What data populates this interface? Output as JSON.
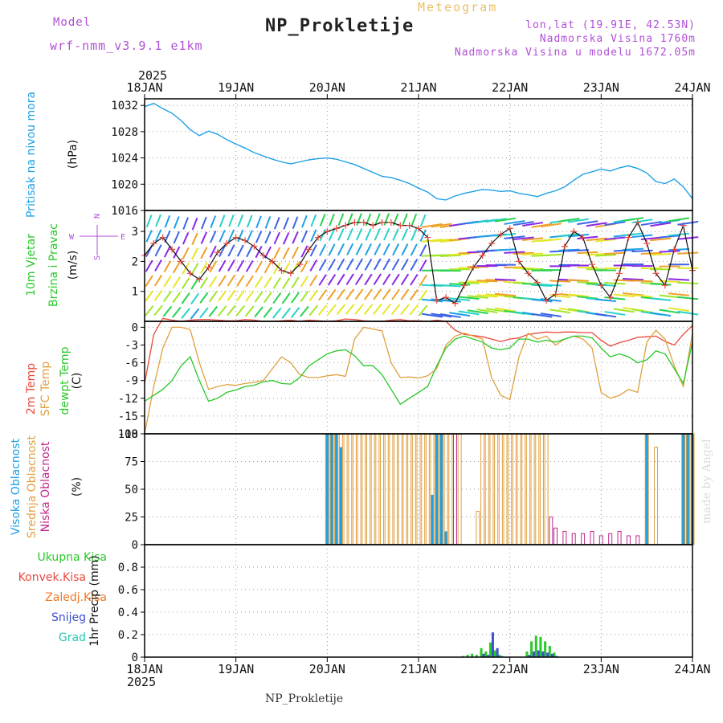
{
  "header": {
    "model_label": "Model",
    "model_value": "wrf-nmm_v3.9.1 e1km",
    "meteogram": "Meteogram",
    "title": "NP_Prokletije",
    "loc1": "lon,lat (19.91E, 42.53N)",
    "loc2": "Nadmorska Visina 1760m",
    "loc3": "Nadmorska Visina u modelu 1672.05m"
  },
  "footer": "NP_Prokletije",
  "made_by": "made by Angel",
  "colors": {
    "pressure": "#1ea0e6",
    "temp2m": "#e8483c",
    "sfc": "#e0a040",
    "dew": "#28c828",
    "purple": "#b14fd6",
    "high_cloud": "#1ea0e6",
    "mid_cloud": "#e0a040",
    "low_cloud": "#c0288c",
    "precip_total": "#28c828",
    "precip_snow": "#3c50d0",
    "precip_grad": "#28c8b4"
  },
  "wind_compass": {
    "n": "N",
    "s": "S",
    "w": "W",
    "e": "E"
  },
  "chart_data": [
    {
      "type": "line",
      "name": "pressure",
      "ylabel_left": "Pritisak na nivou mora",
      "ylabel_unit": "(hPa)",
      "ylim": [
        1016,
        1033
      ],
      "yticks": [
        1016,
        1020,
        1024,
        1028,
        1032
      ],
      "top_axis_year": "2025",
      "x_labels": [
        "18JAN",
        "19JAN",
        "20JAN",
        "21JAN",
        "22JAN",
        "23JAN",
        "24JAN"
      ],
      "x": [
        0,
        0.1,
        0.2,
        0.3,
        0.4,
        0.5,
        0.6,
        0.7,
        0.8,
        0.9,
        1.0,
        1.1,
        1.2,
        1.3,
        1.4,
        1.5,
        1.6,
        1.7,
        1.8,
        1.9,
        2.0,
        2.1,
        2.2,
        2.3,
        2.4,
        2.5,
        2.6,
        2.7,
        2.8,
        2.9,
        3.0,
        3.1,
        3.2,
        3.3,
        3.4,
        3.5,
        3.6,
        3.7,
        3.8,
        3.9,
        4.0,
        4.1,
        4.2,
        4.3,
        4.4,
        4.5,
        4.6,
        4.7,
        4.8,
        4.9,
        5.0,
        5.1,
        5.2,
        5.3,
        5.4,
        5.5,
        5.6,
        5.7,
        5.8,
        5.9,
        6.0
      ],
      "values": [
        1031.8,
        1032.3,
        1031.5,
        1030.8,
        1029.7,
        1028.3,
        1027.4,
        1028.1,
        1027.6,
        1026.8,
        1026.1,
        1025.5,
        1024.8,
        1024.3,
        1023.8,
        1023.4,
        1023.1,
        1023.4,
        1023.7,
        1023.9,
        1024.0,
        1023.8,
        1023.4,
        1023.0,
        1022.4,
        1021.8,
        1021.2,
        1021.0,
        1020.6,
        1020.1,
        1019.4,
        1018.8,
        1017.8,
        1017.6,
        1018.2,
        1018.6,
        1018.9,
        1019.2,
        1019.1,
        1018.9,
        1019.0,
        1018.6,
        1018.4,
        1018.1,
        1018.6,
        1019.0,
        1019.6,
        1020.6,
        1021.5,
        1021.9,
        1022.3,
        1022.0,
        1022.5,
        1022.8,
        1022.4,
        1021.7,
        1020.4,
        1020.1,
        1020.8,
        1019.6,
        1017.8
      ]
    },
    {
      "type": "line",
      "name": "wind",
      "ylabel_left_1": "10m Vjetar",
      "ylabel_left_2": "Brzina i Pravac",
      "ylabel_unit": "(m/s)",
      "ylim": [
        0,
        3.7
      ],
      "yticks": [
        1,
        2,
        3
      ],
      "x": [
        0,
        0.1,
        0.2,
        0.3,
        0.4,
        0.5,
        0.6,
        0.7,
        0.8,
        0.9,
        1.0,
        1.1,
        1.2,
        1.3,
        1.4,
        1.5,
        1.6,
        1.7,
        1.8,
        1.9,
        2.0,
        2.1,
        2.2,
        2.3,
        2.4,
        2.5,
        2.6,
        2.7,
        2.8,
        2.9,
        3.0,
        3.1,
        3.2,
        3.3,
        3.4,
        3.5,
        3.6,
        3.7,
        3.8,
        3.9,
        4.0,
        4.1,
        4.2,
        4.3,
        4.4,
        4.5,
        4.6,
        4.7,
        4.8,
        4.9,
        5.0,
        5.1,
        5.2,
        5.3,
        5.4,
        5.5,
        5.6,
        5.7,
        5.8,
        5.9,
        6.0
      ],
      "values": [
        2.2,
        2.6,
        2.8,
        2.4,
        2.0,
        1.6,
        1.4,
        1.8,
        2.3,
        2.6,
        2.8,
        2.7,
        2.5,
        2.2,
        2.0,
        1.7,
        1.6,
        1.9,
        2.4,
        2.8,
        3.0,
        3.1,
        3.2,
        3.3,
        3.3,
        3.2,
        3.3,
        3.3,
        3.2,
        3.2,
        3.1,
        2.8,
        0.7,
        0.8,
        0.6,
        1.2,
        1.8,
        2.2,
        2.6,
        2.9,
        3.1,
        2.0,
        1.6,
        1.3,
        0.7,
        0.9,
        2.5,
        3.0,
        2.8,
        1.9,
        1.2,
        0.8,
        1.6,
        2.8,
        3.3,
        2.6,
        1.6,
        1.2,
        2.4,
        3.2,
        1.7
      ]
    },
    {
      "type": "line",
      "name": "temperature",
      "ylabel_left_1": "2m Temp",
      "ylabel_left_2": "SFC Temp",
      "ylabel_left_3": "dewpt Temp",
      "ylabel_unit": "(C)",
      "ylim": [
        -18,
        1
      ],
      "yticks": [
        0,
        -3,
        -6,
        -9,
        -12,
        -15,
        -18
      ],
      "x": [
        0,
        0.1,
        0.2,
        0.3,
        0.4,
        0.5,
        0.6,
        0.7,
        0.8,
        0.9,
        1.0,
        1.1,
        1.2,
        1.3,
        1.4,
        1.5,
        1.6,
        1.7,
        1.8,
        1.9,
        2.0,
        2.1,
        2.2,
        2.3,
        2.4,
        2.5,
        2.6,
        2.7,
        2.8,
        2.9,
        3.0,
        3.1,
        3.2,
        3.3,
        3.4,
        3.5,
        3.6,
        3.7,
        3.8,
        3.9,
        4.0,
        4.1,
        4.2,
        4.3,
        4.4,
        4.5,
        4.6,
        4.7,
        4.8,
        4.9,
        5.0,
        5.1,
        5.2,
        5.3,
        5.4,
        5.5,
        5.6,
        5.7,
        5.8,
        5.9,
        6.0
      ],
      "series": [
        {
          "key": "t2m",
          "values": [
            -9.5,
            -1.2,
            1.5,
            1.2,
            1.0,
            1.2,
            1.3,
            1.3,
            1.2,
            1.1,
            1.1,
            1.3,
            1.2,
            1.0,
            1.0,
            1.1,
            1.2,
            1.0,
            1.2,
            1.1,
            1.0,
            1.1,
            1.4,
            1.3,
            1.1,
            1.0,
            1.0,
            1.2,
            1.3,
            1.1,
            1.1,
            1.0,
            1.2,
            1.0,
            -0.5,
            -1.2,
            -1.4,
            -1.6,
            -2.0,
            -2.4,
            -2.0,
            -1.8,
            -1.2,
            -1.0,
            -0.8,
            -0.9,
            -0.8,
            -0.8,
            -0.9,
            -0.9,
            -2.2,
            -3.2,
            -2.6,
            -2.2,
            -1.7,
            -1.6,
            -1.5,
            -2.4,
            -3.0,
            -1.2,
            0.3
          ]
        },
        {
          "key": "sfc",
          "values": [
            -18.0,
            -10.0,
            -3.5,
            0.0,
            0.0,
            -0.4,
            -6.0,
            -10.5,
            -10.0,
            -9.7,
            -9.8,
            -9.5,
            -9.3,
            -9.0,
            -7.0,
            -5.0,
            -6.0,
            -8.0,
            -8.5,
            -8.5,
            -8.2,
            -8.0,
            -8.3,
            -2.0,
            0.0,
            -0.3,
            -0.6,
            -6.0,
            -8.5,
            -8.4,
            -8.6,
            -8.2,
            -7.0,
            -3.0,
            -1.5,
            -1.0,
            -1.5,
            -2.0,
            -8.5,
            -11.5,
            -12.2,
            -5.0,
            -1.0,
            -2.0,
            -1.5,
            -3.0,
            -2.0,
            -1.5,
            -2.0,
            -3.5,
            -11.0,
            -12.0,
            -11.5,
            -10.5,
            -11.0,
            -2.5,
            -0.5,
            -2.0,
            -6.5,
            -10.0,
            -1.0
          ]
        },
        {
          "key": "dew",
          "values": [
            -12.5,
            -11.5,
            -10.5,
            -9.0,
            -6.5,
            -5.0,
            -9.0,
            -12.5,
            -12.0,
            -11.0,
            -10.6,
            -10.0,
            -9.8,
            -9.2,
            -9.0,
            -9.5,
            -9.6,
            -8.5,
            -6.5,
            -5.5,
            -4.5,
            -4.0,
            -3.8,
            -4.8,
            -6.5,
            -6.5,
            -8.0,
            -10.5,
            -13.0,
            -12.0,
            -11.0,
            -10.0,
            -6.5,
            -3.5,
            -2.0,
            -1.5,
            -2.0,
            -2.5,
            -3.5,
            -3.8,
            -3.5,
            -2.0,
            -2.0,
            -2.5,
            -2.2,
            -2.5,
            -2.0,
            -1.5,
            -1.5,
            -1.8,
            -3.5,
            -5.0,
            -4.5,
            -5.0,
            -6.0,
            -5.5,
            -4.0,
            -4.5,
            -7.0,
            -9.5,
            -2.5
          ]
        }
      ]
    },
    {
      "type": "bar",
      "name": "clouds",
      "ylabel_left_1": "Visoka Oblacnost",
      "ylabel_left_2": "Srednja Oblacnost",
      "ylabel_left_3": "Niska Oblacnost",
      "ylabel_unit": "(%)",
      "ylim": [
        0,
        100
      ],
      "yticks": [
        0,
        25,
        50,
        75,
        100
      ],
      "x": [
        2.0,
        2.05,
        2.1,
        2.15,
        2.2,
        2.25,
        2.3,
        2.35,
        2.4,
        2.45,
        2.5,
        2.55,
        2.6,
        2.65,
        2.7,
        2.75,
        2.8,
        2.85,
        2.9,
        2.95,
        3.0,
        3.05,
        3.1,
        3.15,
        3.2,
        3.25,
        3.3,
        3.35,
        3.4,
        3.45,
        3.5,
        3.55,
        3.6,
        3.65,
        3.7,
        3.75,
        3.8,
        3.85,
        3.9,
        3.95,
        4.0,
        4.05,
        4.1,
        4.15,
        4.2,
        4.25,
        4.3,
        4.35,
        4.4,
        4.45,
        4.5,
        4.6,
        4.7,
        4.8,
        4.9,
        5.0,
        5.1,
        5.2,
        5.3,
        5.4,
        5.5,
        5.6,
        5.7,
        5.8,
        5.9,
        5.95,
        6.0
      ],
      "series": [
        {
          "key": "high",
          "values": [
            100,
            100,
            100,
            88,
            0,
            0,
            0,
            0,
            0,
            0,
            0,
            0,
            0,
            0,
            0,
            0,
            0,
            0,
            0,
            0,
            0,
            0,
            0,
            45,
            100,
            100,
            12,
            0,
            0,
            0,
            0,
            0,
            0,
            0,
            0,
            0,
            0,
            0,
            0,
            0,
            0,
            0,
            0,
            0,
            0,
            0,
            0,
            0,
            0,
            0,
            0,
            0,
            0,
            0,
            0,
            0,
            0,
            0,
            0,
            0,
            100,
            0,
            0,
            0,
            100,
            100,
            100
          ]
        },
        {
          "key": "mid",
          "values": [
            100,
            100,
            100,
            100,
            100,
            100,
            100,
            100,
            100,
            100,
            100,
            100,
            100,
            100,
            100,
            100,
            100,
            100,
            100,
            100,
            100,
            100,
            100,
            100,
            100,
            100,
            100,
            100,
            100,
            100,
            0,
            0,
            0,
            30,
            100,
            100,
            100,
            100,
            100,
            100,
            100,
            100,
            100,
            100,
            100,
            100,
            100,
            100,
            100,
            0,
            0,
            0,
            0,
            0,
            0,
            0,
            0,
            0,
            0,
            0,
            100,
            88,
            0,
            0,
            100,
            100,
            100
          ]
        },
        {
          "key": "low",
          "values": [
            0,
            0,
            0,
            0,
            0,
            0,
            0,
            0,
            0,
            0,
            0,
            0,
            0,
            0,
            0,
            0,
            0,
            0,
            0,
            0,
            0,
            0,
            0,
            0,
            0,
            0,
            0,
            0,
            100,
            0,
            0,
            0,
            0,
            0,
            0,
            0,
            0,
            0,
            0,
            0,
            0,
            0,
            0,
            0,
            0,
            0,
            0,
            0,
            0,
            25,
            15,
            12,
            10,
            10,
            12,
            8,
            10,
            12,
            8,
            8,
            0,
            0,
            0,
            0,
            0,
            0,
            0
          ]
        }
      ]
    },
    {
      "type": "bar",
      "name": "precipitation",
      "legend": [
        "Ukupna Kisa",
        "Konvek.Kisa",
        "Zaledj.Kisa",
        "Snijeg",
        "Grad"
      ],
      "ylabel_unit": "1hr Precip (mm)",
      "ylim": [
        0,
        1.0
      ],
      "yticks": [
        0,
        0.2,
        0.4,
        0.6,
        0.8
      ],
      "bottom_axis_year": "2025",
      "x": [
        3.5,
        3.55,
        3.6,
        3.65,
        3.7,
        3.75,
        3.8,
        3.85,
        3.9,
        4.2,
        4.25,
        4.3,
        4.35,
        4.4,
        4.45,
        4.5
      ],
      "series": [
        {
          "key": "total",
          "values": [
            0.01,
            0.02,
            0.03,
            0.02,
            0.08,
            0.05,
            0.13,
            0.06,
            0.02,
            0.05,
            0.14,
            0.19,
            0.18,
            0.14,
            0.1,
            0.04
          ]
        },
        {
          "key": "snow",
          "values": [
            0,
            0,
            0,
            0,
            0.03,
            0.02,
            0.22,
            0.08,
            0.01,
            0.02,
            0.05,
            0.06,
            0.05,
            0.04,
            0.03,
            0.01
          ]
        }
      ]
    }
  ]
}
